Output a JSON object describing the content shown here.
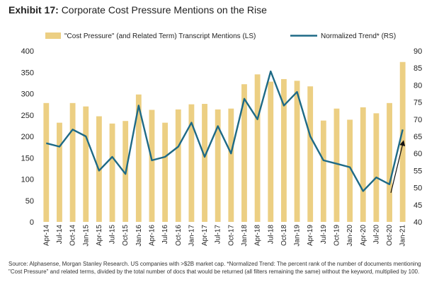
{
  "header": {
    "exhibit": "Exhibit 17:",
    "title": "Corporate Cost Pressure Mentions on the Rise"
  },
  "source_note": "Source: Alphasense, Morgan Stanley Research. US companies with >$2B market cap. *Normalized Trend: The percent rank of the number of documents mentioning \"Cost Pressure\" and related terms, divided by the total number of docs that would be returned (all filters remaining the same) without the keyword, multiplied by 100.",
  "colors": {
    "bars": "#ECCF83",
    "line": "#1E6A86",
    "arrow": "#111111"
  },
  "chart_data": {
    "type": "bar",
    "title": "Corporate Cost Pressure Mentions on the Rise",
    "legend_position": "top",
    "grid": false,
    "x": [
      "Apr-14",
      "Jul-14",
      "Oct-14",
      "Jan-15",
      "Apr-15",
      "Jul-15",
      "Oct-15",
      "Jan-16",
      "Apr-16",
      "Jul-16",
      "Oct-16",
      "Jan-17",
      "Apr-17",
      "Jul-17",
      "Oct-17",
      "Jan-18",
      "Apr-18",
      "Jul-18",
      "Oct-18",
      "Jan-19",
      "Apr-19",
      "Jul-19",
      "Oct-19",
      "Jan-20",
      "Apr-20",
      "Jul-20",
      "Oct-20",
      "Jan-21"
    ],
    "series": [
      {
        "name": "\"Cost Pressure\" (and Related Term) Transcript Mentions (LS)",
        "type": "bar",
        "axis": "left",
        "values": [
          278,
          232,
          278,
          270,
          247,
          230,
          236,
          298,
          262,
          232,
          263,
          275,
          276,
          263,
          265,
          322,
          345,
          328,
          334,
          330,
          317,
          237,
          265,
          239,
          268,
          254,
          278,
          374
        ]
      },
      {
        "name": "Normalized Trend* (RS)",
        "type": "line",
        "axis": "right",
        "values": [
          63,
          62,
          67,
          65,
          55,
          59,
          54,
          74,
          58,
          59,
          62,
          69,
          59,
          68,
          60,
          76,
          70,
          84,
          74,
          78,
          65,
          58,
          57,
          56,
          49,
          53,
          51,
          67
        ]
      }
    ],
    "left_axis": {
      "min": 0,
      "max": 400,
      "ticks": [
        0,
        50,
        100,
        150,
        200,
        250,
        300,
        350,
        400
      ]
    },
    "right_axis": {
      "min": 40,
      "max": 90,
      "ticks": [
        40,
        45,
        50,
        55,
        60,
        65,
        70,
        75,
        80,
        85,
        90
      ]
    }
  }
}
